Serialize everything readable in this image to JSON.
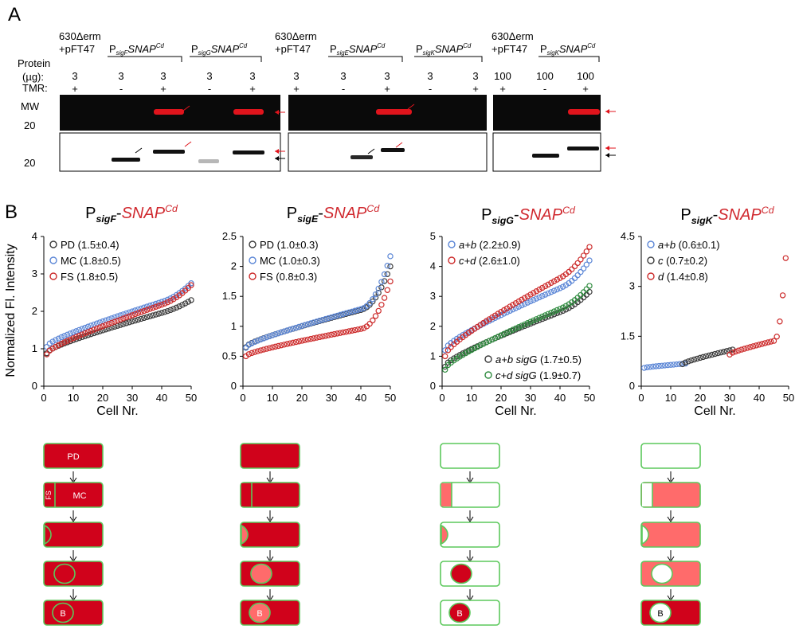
{
  "panel_a": {
    "panel_label": "A",
    "row_labels": {
      "protein": "Protein",
      "ug": "(µg):",
      "tmr": "TMR:",
      "mw1": "MW",
      "mw_value1": "20",
      "mw_value2": "20"
    },
    "strain_groups": [
      {
        "line1": "630Δerm",
        "line2": "+pFT47"
      },
      {
        "line1": "P",
        "sub": "sigF",
        "tail": "SNAP",
        "sup": "Cd"
      },
      {
        "line1": "P",
        "sub": "sigG",
        "tail": "SNAP",
        "sup": "Cd"
      },
      {
        "line1": "630Δerm",
        "line2": "+pFT47"
      },
      {
        "line1": "P",
        "sub": "sigE",
        "tail": "SNAP",
        "sup": "Cd"
      },
      {
        "line1": "P",
        "sub": "sigK",
        "tail": "SNAP",
        "sup": "Cd"
      },
      {
        "line1": "630Δerm",
        "line2": "+pFT47"
      },
      {
        "line1": "P",
        "sub": "sigK",
        "tail": "SNAP",
        "sup": "Cd"
      }
    ],
    "lanes": [
      {
        "ug": "3",
        "tmr": "+"
      },
      {
        "ug": "3",
        "tmr": "-"
      },
      {
        "ug": "3",
        "tmr": "+"
      },
      {
        "ug": "3",
        "tmr": "-"
      },
      {
        "ug": "3",
        "tmr": "+"
      },
      {
        "ug": "3",
        "tmr": "+"
      },
      {
        "ug": "3",
        "tmr": "-"
      },
      {
        "ug": "3",
        "tmr": "+"
      },
      {
        "ug": "3",
        "tmr": "-"
      },
      {
        "ug": "3",
        "tmr": "+"
      },
      {
        "ug": "100",
        "tmr": "+"
      },
      {
        "ug": "100",
        "tmr": "-"
      },
      {
        "ug": "100",
        "tmr": "+"
      }
    ]
  },
  "panel_b": {
    "panel_label": "B",
    "y_axis_title": "Normalized Fl. Intensity",
    "x_axis_title": "Cell Nr.",
    "colors": {
      "black": "#3a3a3a",
      "blue": "#5b86d6",
      "red": "#cc2a2a",
      "green": "#2e8b3e",
      "title_red": "#d0282e",
      "cell_red": "#d0021b",
      "cell_light": "#ff6b6b",
      "cell_border": "#5cc85c"
    }
  },
  "chart_data": [
    {
      "type": "scatter",
      "title_p": "P",
      "title_sub": "sigF",
      "title_dash": "-",
      "title_main": "SNAP",
      "title_sup": "Cd",
      "xlabel": "Cell Nr.",
      "ylabel": "Normalized Fl. Intensity",
      "xlim": [
        0,
        50
      ],
      "ylim": [
        0,
        4
      ],
      "xticks": [
        "0",
        "10",
        "20",
        "30",
        "40",
        "50"
      ],
      "yticks": [
        "0",
        "1",
        "2",
        "3",
        "4"
      ],
      "legend_placement": "top-left",
      "series": [
        {
          "name": "PD (1.5±0.4)",
          "color": "black",
          "start": 0.88,
          "mid": 1.55,
          "end": 2.3,
          "tail": 0.12
        },
        {
          "name": "MC (1.8±0.5)",
          "color": "blue",
          "start": 1.05,
          "mid": 1.78,
          "end": 2.75,
          "tail": 0.25
        },
        {
          "name": "FS (1.8±0.5)",
          "color": "red",
          "start": 0.85,
          "mid": 1.82,
          "end": 2.7,
          "tail": 0.25
        }
      ]
    },
    {
      "type": "scatter",
      "title_p": "P",
      "title_sub": "sigE",
      "title_dash": "-",
      "title_main": "SNAP",
      "title_sup": "Cd",
      "xlabel": "",
      "ylabel": "",
      "xlim": [
        0,
        50
      ],
      "ylim": [
        0,
        2.5
      ],
      "xticks": [
        "0",
        "10",
        "20",
        "30",
        "40",
        "50"
      ],
      "yticks": [
        "0",
        "0.5",
        "1",
        "1.5",
        "2",
        "2.5"
      ],
      "legend_placement": "top-left",
      "series": [
        {
          "name": "PD (1.0±0.3)",
          "color": "black",
          "start": 0.65,
          "mid": 0.98,
          "end": 2.0,
          "tail": 0.6
        },
        {
          "name": "MC (1.0±0.3)",
          "color": "blue",
          "start": 0.64,
          "mid": 1.0,
          "end": 2.17,
          "tail": 0.75
        },
        {
          "name": "FS (0.8±0.3)",
          "color": "red",
          "start": 0.5,
          "mid": 0.73,
          "end": 1.75,
          "tail": 0.7
        }
      ]
    },
    {
      "type": "scatter",
      "title_p": "P",
      "title_sub": "sigG",
      "title_dash": "-",
      "title_main": "SNAP",
      "title_sup": "Cd",
      "xlabel": "Cell Nr.",
      "ylabel": "",
      "xlim": [
        0,
        50
      ],
      "ylim": [
        0,
        5
      ],
      "xticks": [
        "0",
        "10",
        "20",
        "30",
        "40",
        "50"
      ],
      "yticks": [
        "0",
        "1",
        "2",
        "3",
        "4",
        "5"
      ],
      "legend_placement": "top-left and bottom-right",
      "series": [
        {
          "name": "a+b (2.2±0.9)",
          "color": "blue",
          "start": 1.2,
          "mid": 2.0,
          "end": 4.2,
          "tail": 0.5,
          "legend": "top"
        },
        {
          "name": "c+d (2.6±1.0)",
          "color": "red",
          "start": 1.0,
          "mid": 2.5,
          "end": 4.65,
          "tail": 0.5,
          "legend": "top"
        },
        {
          "name": "a+b sigG (1.7±0.5)",
          "color": "black",
          "start": 0.65,
          "mid": 1.6,
          "end": 3.15,
          "tail": 0.3,
          "legend": "bottom"
        },
        {
          "name": "c+d  sigG (1.9±0.7)",
          "color": "green",
          "start": 0.55,
          "mid": 1.7,
          "end": 3.35,
          "tail": 0.35,
          "legend": "bottom"
        }
      ]
    },
    {
      "type": "scatter",
      "title_p": "P",
      "title_sub": "sigK",
      "title_dash": "-",
      "title_main": "SNAP",
      "title_sup": "Cd",
      "xlabel": "Cell Nr.",
      "ylabel": "",
      "xlim": [
        0,
        50
      ],
      "ylim": [
        0,
        4.5
      ],
      "xticks": [
        "0",
        "10",
        "20",
        "30",
        "40",
        "50"
      ],
      "yticks": [
        "0",
        "1.5",
        "3",
        "4.5"
      ],
      "legend_placement": "top-left",
      "series": [
        {
          "name": "a+b (0.6±0.1)",
          "color": "blue",
          "start": 0.55,
          "mid": 0.6,
          "end": 0.68,
          "tail": 0.0,
          "count": 15,
          "xstart": 1
        },
        {
          "name": "c (0.7±0.2)",
          "color": "black",
          "start": 0.66,
          "mid": 0.72,
          "end": 1.1,
          "tail": 0.0,
          "count": 18,
          "xstart": 14
        },
        {
          "name": "d (1.4±0.8)",
          "color": "red",
          "start": 0.95,
          "mid": 1.2,
          "end": 3.85,
          "tail": 2.4,
          "count": 20,
          "xstart": 30
        }
      ]
    }
  ],
  "cell_labels": {
    "pd": "PD",
    "fs": "FS",
    "mc": "MC",
    "b": "B"
  }
}
